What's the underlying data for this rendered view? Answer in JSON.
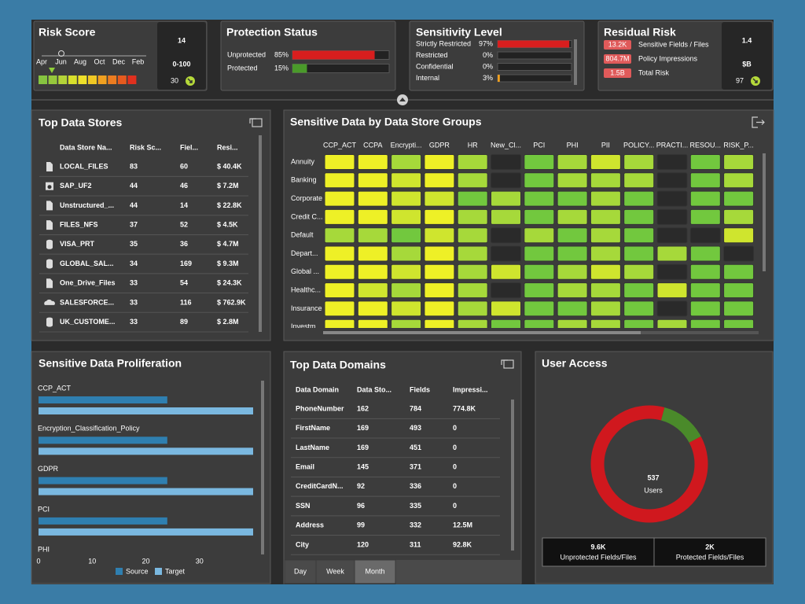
{
  "risk_score": {
    "title": "Risk Score",
    "months": [
      "Apr",
      "Jun",
      "Aug",
      "Oct",
      "Dec",
      "Feb"
    ],
    "score": 14,
    "range": "0-100",
    "trend": 30
  },
  "protection_status": {
    "title": "Protection Status",
    "items": [
      {
        "label": "Unprotected",
        "value": 85,
        "value_label": "85%",
        "color": "#d81e1e"
      },
      {
        "label": "Protected",
        "value": 15,
        "value_label": "15%",
        "color": "#4a9a2a"
      }
    ]
  },
  "sensitivity_level": {
    "title": "Sensitivity Level",
    "items": [
      {
        "label": "Strictly Restricted",
        "value": 97,
        "value_label": "97%",
        "color": "#d81e1e"
      },
      {
        "label": "Restricted",
        "value": 0,
        "value_label": "0%"
      },
      {
        "label": "Confidential",
        "value": 0,
        "value_label": "0%"
      },
      {
        "label": "Internal",
        "value": 3,
        "value_label": "3%",
        "color": "#f0a020"
      }
    ]
  },
  "residual_risk": {
    "title": "Residual Risk",
    "items": [
      {
        "badge": "13.2K",
        "label": "Sensitive Fields / Files"
      },
      {
        "badge": "804.7M",
        "label": "Policy Impressions"
      },
      {
        "badge": "1.5B",
        "label": "Total Risk"
      }
    ],
    "value": 1.4,
    "unit": "$B",
    "trend": 97
  },
  "top_data_stores": {
    "title": "Top Data Stores",
    "columns": [
      "Data Store Na...",
      "Risk Sc...",
      "Fiel...",
      "Resi..."
    ],
    "rows": [
      [
        "LOCAL_FILES",
        "83",
        "60",
        "$ 40.4K"
      ],
      [
        "SAP_UF2",
        "44",
        "46",
        "$ 7.2M"
      ],
      [
        "Unstructured_...",
        "44",
        "14",
        "$ 22.8K"
      ],
      [
        "FILES_NFS",
        "37",
        "52",
        "$ 4.5K"
      ],
      [
        "VISA_PRT",
        "35",
        "36",
        "$ 4.7M"
      ],
      [
        "GLOBAL_SAL...",
        "34",
        "169",
        "$ 9.3M"
      ],
      [
        "One_Drive_Files",
        "33",
        "54",
        "$ 24.3K"
      ],
      [
        "SALESFORCE...",
        "33",
        "116",
        "$ 762.9K"
      ],
      [
        "UK_CUSTOME...",
        "33",
        "89",
        "$ 2.8M"
      ]
    ]
  },
  "heatmap": {
    "title": "Sensitive Data by Data Store Groups",
    "columns": [
      "CCP_ACT",
      "CCPA",
      "Encrypti...",
      "GDPR",
      "HR",
      "New_Cl...",
      "PCI",
      "PHI",
      "PII",
      "POLICY...",
      "PRACTI...",
      "RESOU...",
      "RISK_P..."
    ],
    "rows": [
      "Annuity",
      "Banking",
      "Corporate",
      "Credit C...",
      "Default",
      "Depart...",
      "Global ...",
      "Healthc...",
      "Insurance",
      "Investm"
    ],
    "colors": [
      [
        "#eef026",
        "#eef026",
        "#a6d93a",
        "#eef026",
        "#a6d93a",
        "#2a2a2a",
        "#72c83e",
        "#a6d93a",
        "#cfe52e",
        "#a6d93a",
        "#2a2a2a",
        "#72c83e",
        "#a6d93a"
      ],
      [
        "#eef026",
        "#eef026",
        "#cfe52e",
        "#eef026",
        "#a6d93a",
        "#2a2a2a",
        "#72c83e",
        "#a6d93a",
        "#a6d93a",
        "#a6d93a",
        "#2a2a2a",
        "#72c83e",
        "#a6d93a"
      ],
      [
        "#eef026",
        "#eef026",
        "#cfe52e",
        "#cfe52e",
        "#72c83e",
        "#a6d93a",
        "#72c83e",
        "#72c83e",
        "#a6d93a",
        "#72c83e",
        "#2a2a2a",
        "#72c83e",
        "#72c83e"
      ],
      [
        "#eef026",
        "#eef026",
        "#cfe52e",
        "#eef026",
        "#a6d93a",
        "#a6d93a",
        "#72c83e",
        "#a6d93a",
        "#a6d93a",
        "#72c83e",
        "#2a2a2a",
        "#72c83e",
        "#a6d93a"
      ],
      [
        "#a6d93a",
        "#a6d93a",
        "#72c83e",
        "#cfe52e",
        "#a6d93a",
        "#2a2a2a",
        "#a6d93a",
        "#72c83e",
        "#a6d93a",
        "#72c83e",
        "#2a2a2a",
        "#2a2a2a",
        "#cfe52e"
      ],
      [
        "#eef026",
        "#eef026",
        "#a6d93a",
        "#eef026",
        "#a6d93a",
        "#2a2a2a",
        "#72c83e",
        "#72c83e",
        "#a6d93a",
        "#72c83e",
        "#a6d93a",
        "#72c83e",
        "#2a2a2a"
      ],
      [
        "#eef026",
        "#eef026",
        "#cfe52e",
        "#eef026",
        "#a6d93a",
        "#cfe52e",
        "#72c83e",
        "#a6d93a",
        "#cfe52e",
        "#a6d93a",
        "#2a2a2a",
        "#72c83e",
        "#72c83e"
      ],
      [
        "#eef026",
        "#cfe52e",
        "#a6d93a",
        "#eef026",
        "#a6d93a",
        "#2a2a2a",
        "#72c83e",
        "#a6d93a",
        "#a6d93a",
        "#72c83e",
        "#cfe52e",
        "#72c83e",
        "#72c83e"
      ],
      [
        "#eef026",
        "#eef026",
        "#cfe52e",
        "#eef026",
        "#a6d93a",
        "#cfe52e",
        "#72c83e",
        "#72c83e",
        "#a6d93a",
        "#72c83e",
        "#2a2a2a",
        "#72c83e",
        "#72c83e"
      ],
      [
        "#eef026",
        "#eef026",
        "#a6d93a",
        "#eef026",
        "#a6d93a",
        "#72c83e",
        "#72c83e",
        "#a6d93a",
        "#a6d93a",
        "#72c83e",
        "#a6d93a",
        "#72c83e",
        "#72c83e"
      ]
    ]
  },
  "proliferation": {
    "title": "Sensitive Data Proliferation",
    "categories": [
      "CCP_ACT",
      "Encryption_Classification_Policy",
      "GDPR",
      "PCI",
      "PHI"
    ],
    "series": [
      {
        "name": "Source",
        "color": "#2f7fb0",
        "values": [
          24,
          24,
          24,
          24,
          24
        ]
      },
      {
        "name": "Target",
        "color": "#7ab8e0",
        "values": [
          40,
          40,
          40,
          40,
          40
        ]
      }
    ],
    "xlim": [
      0,
      40
    ],
    "xticks": [
      0,
      10,
      20,
      30
    ]
  },
  "top_data_domains": {
    "title": "Top Data Domains",
    "columns": [
      "Data Domain",
      "Data Sto...",
      "Fields",
      "Impressi..."
    ],
    "rows": [
      [
        "PhoneNumber",
        "162",
        "784",
        "774.8K"
      ],
      [
        "FirstName",
        "169",
        "493",
        "0"
      ],
      [
        "LastName",
        "169",
        "451",
        "0"
      ],
      [
        "Email",
        "145",
        "371",
        "0"
      ],
      [
        "CreditCardN...",
        "92",
        "336",
        "0"
      ],
      [
        "SSN",
        "96",
        "335",
        "0"
      ],
      [
        "Address",
        "99",
        "332",
        "12.5M"
      ],
      [
        "City",
        "120",
        "311",
        "92.8K"
      ]
    ],
    "tabs": [
      "Day",
      "Week",
      "Month"
    ],
    "active_tab": 2
  },
  "user_access": {
    "title": "User Access",
    "total": 537,
    "total_label": "Users",
    "segments": [
      {
        "value": 13,
        "color": "#4a8a2a"
      },
      {
        "value": 87,
        "color": "#d0181e"
      }
    ],
    "stats": [
      {
        "value": "9.6K",
        "label": "Unprotected Fields/Files",
        "color": "#e0262a"
      },
      {
        "value": "2K",
        "label": "Protected Fields/Files",
        "color": "#8bc34a"
      }
    ]
  }
}
